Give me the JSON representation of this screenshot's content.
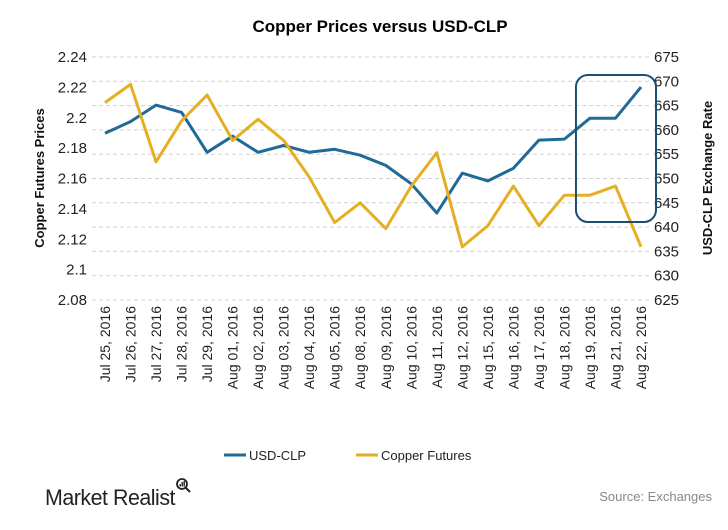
{
  "chart_data": {
    "type": "line",
    "title": "Copper Prices versus USD-CLP",
    "categories": [
      "Jul 25, 2016",
      "Jul 26, 2016",
      "Jul 27, 2016",
      "Jul 28, 2016",
      "Jul 29, 2016",
      "Aug 01, 2016",
      "Aug 02, 2016",
      "Aug 03, 2016",
      "Aug 04, 2016",
      "Aug 05, 2016",
      "Aug 08, 2016",
      "Aug 09, 2016",
      "Aug 10, 2016",
      "Aug 11, 2016",
      "Aug 12, 2016",
      "Aug 15, 2016",
      "Aug 16, 2016",
      "Aug 17, 2016",
      "Aug 18, 2016",
      "Aug 19, 2016",
      "Aug 21, 2016",
      "Aug 22, 2016"
    ],
    "y_left": {
      "label": "Copper Futures Prices",
      "range": [
        2.08,
        2.24
      ],
      "ticks": [
        "2.08",
        "2.1",
        "2.12",
        "2.14",
        "2.16",
        "2.18",
        "2.2",
        "2.22",
        "2.24"
      ]
    },
    "y_right": {
      "label": "USD-CLP Exchange Rate",
      "range": [
        625,
        675
      ],
      "ticks": [
        "625",
        "630",
        "635",
        "640",
        "645",
        "650",
        "655",
        "660",
        "665",
        "670",
        "675"
      ]
    },
    "grid": "horizontal-dashed",
    "legend_position": "bottom",
    "series": [
      {
        "name": "USD-CLP",
        "axis": "right",
        "color": "#1f6a96",
        "values": [
          659.3,
          661.7,
          665.1,
          663.6,
          655.4,
          658.7,
          655.4,
          656.8,
          655.4,
          656.0,
          654.8,
          652.7,
          648.9,
          642.9,
          651.1,
          649.5,
          652.1,
          657.9,
          658.1,
          662.4,
          662.4,
          668.8
        ]
      },
      {
        "name": "Copper Futures",
        "axis": "left",
        "color": "#e6ae22",
        "values": [
          2.21,
          2.222,
          2.171,
          2.198,
          2.215,
          2.185,
          2.199,
          2.185,
          2.161,
          2.131,
          2.144,
          2.127,
          2.155,
          2.177,
          2.115,
          2.129,
          2.155,
          2.129,
          2.149,
          2.149,
          2.155,
          2.115
        ]
      }
    ],
    "annotation": {
      "type": "highlight-box",
      "from": "Aug 19, 2016",
      "to": "Aug 22, 2016",
      "color": "#1b4f72"
    }
  },
  "footer": {
    "logo": "Market Realist",
    "source": "Source: Exchanges"
  }
}
